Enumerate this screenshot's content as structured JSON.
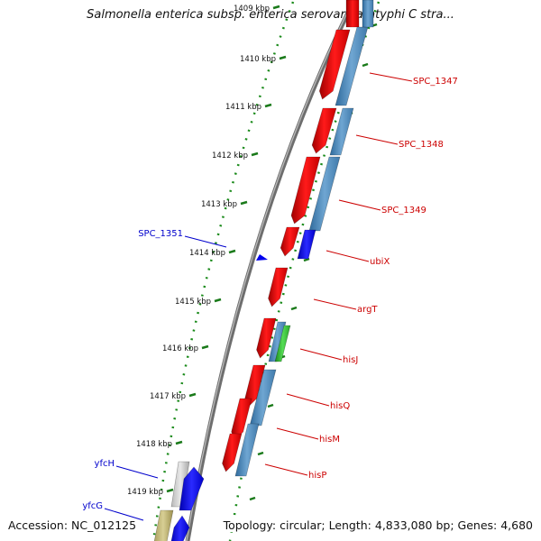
{
  "title": "Salmonella enterica subsp. enterica serovar Paratyphi C stra...",
  "footer": {
    "accession": "Accession: NC_012125",
    "topology": "Topology: circular; Length: 4,833,080 bp; Genes: 4,680"
  },
  "ruler": [
    {
      "label": "1409 kbp",
      "partial": true
    },
    {
      "label": "1410 kbp"
    },
    {
      "label": "1411 kbp"
    },
    {
      "label": "1412 kbp"
    },
    {
      "label": "1413 kbp"
    },
    {
      "label": "1414 kbp"
    },
    {
      "label": "1415 kbp"
    },
    {
      "label": "1416 kbp"
    },
    {
      "label": "1417 kbp"
    },
    {
      "label": "1418 kbp"
    },
    {
      "label": "1419 kbp"
    }
  ],
  "genes": [
    {
      "name": "SPC_1347",
      "strand": "plus",
      "color": "#cc0000"
    },
    {
      "name": "SPC_1348",
      "strand": "plus",
      "color": "#cc0000"
    },
    {
      "name": "SPC_1349",
      "strand": "plus",
      "color": "#cc0000"
    },
    {
      "name": "ubiX",
      "strand": "plus",
      "color": "#cc0000"
    },
    {
      "name": "argT",
      "strand": "plus",
      "color": "#cc0000"
    },
    {
      "name": "hisJ",
      "strand": "plus",
      "color": "#cc0000"
    },
    {
      "name": "hisQ",
      "strand": "plus",
      "color": "#cc0000"
    },
    {
      "name": "hisM",
      "strand": "plus",
      "color": "#cc0000"
    },
    {
      "name": "hisP",
      "strand": "plus",
      "color": "#cc0000"
    },
    {
      "name": "SPC_1351",
      "strand": "minus",
      "color": "#0000cc"
    },
    {
      "name": "yfcH",
      "strand": "minus",
      "color": "#0000cc"
    },
    {
      "name": "yfcG",
      "strand": "minus",
      "color": "#0000cc"
    }
  ],
  "colors": {
    "cds": "#e00000",
    "minus_cds": "#0000ee",
    "plus_track": "#4f86b4",
    "ruler_dots": "#1a8a1a",
    "backbone": "#8a8a8a"
  }
}
